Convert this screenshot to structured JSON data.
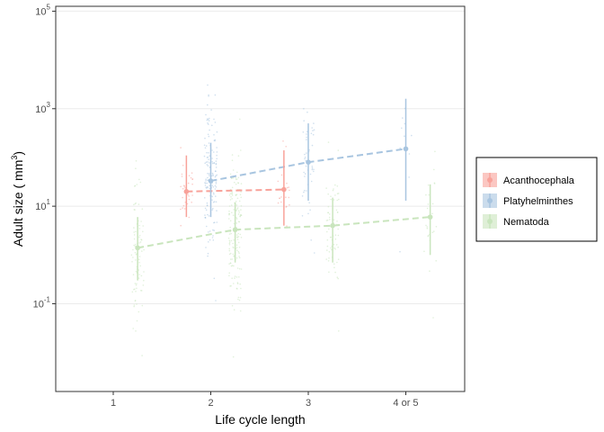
{
  "chart_data": {
    "type": "scatter",
    "xlabel": "Life cycle length",
    "ylabel": {
      "main": "Adult size ( mm",
      "sup": "3",
      "close": ")"
    },
    "x_categories": [
      "1",
      "2",
      "3",
      "4 or 5"
    ],
    "y_scale": "log10",
    "y_range_log10": [
      -2.8,
      5.1
    ],
    "y_ticks": [
      {
        "exp": -1,
        "base": "10",
        "sup": "-1"
      },
      {
        "exp": 1,
        "base": "10",
        "sup": "1"
      },
      {
        "exp": 3,
        "base": "10",
        "sup": "3"
      },
      {
        "exp": 5,
        "base": "10",
        "sup": "5"
      }
    ],
    "grid": "horizontal major",
    "legend": {
      "position": "right"
    },
    "series": [
      {
        "name": "Acanthocephala",
        "color": "#f8a29a",
        "offset": -0.25,
        "points": [
          {
            "x": "2",
            "mean": 20,
            "lo": 6,
            "hi": 110
          },
          {
            "x": "3",
            "mean": 22,
            "lo": 4,
            "hi": 140
          }
        ],
        "raw": [
          {
            "x": "2",
            "center_log": 1.3,
            "sd_log": 0.35,
            "n": 30
          },
          {
            "x": "3",
            "center_log": 1.35,
            "sd_log": 0.4,
            "n": 20
          }
        ]
      },
      {
        "name": "Platyhelminthes",
        "color": "#a8c5e0",
        "offset": 0,
        "points": [
          {
            "x": "2",
            "mean": 33,
            "lo": 6,
            "hi": 200
          },
          {
            "x": "3",
            "mean": 80,
            "lo": 13,
            "hi": 500
          },
          {
            "x": "4 or 5",
            "mean": 150,
            "lo": 13,
            "hi": 1600
          }
        ],
        "raw": [
          {
            "x": "2",
            "center_log": 1.6,
            "sd_log": 0.75,
            "n": 150
          },
          {
            "x": "3",
            "center_log": 1.9,
            "sd_log": 0.6,
            "n": 45
          },
          {
            "x": "4 or 5",
            "center_log": 2.2,
            "sd_log": 0.7,
            "n": 10
          }
        ]
      },
      {
        "name": "Nematoda",
        "color": "#c9e5bd",
        "offset": 0.25,
        "points": [
          {
            "x": "1",
            "mean": 1.4,
            "lo": 0.3,
            "hi": 6
          },
          {
            "x": "2",
            "mean": 3.3,
            "lo": 0.7,
            "hi": 12
          },
          {
            "x": "3",
            "mean": 4,
            "lo": 0.7,
            "hi": 15
          },
          {
            "x": "4 or 5",
            "mean": 6,
            "lo": 1,
            "hi": 28
          }
        ],
        "raw": [
          {
            "x": "1",
            "center_log": 0.1,
            "sd_log": 0.7,
            "n": 90
          },
          {
            "x": "2",
            "center_log": 0.45,
            "sd_log": 0.75,
            "n": 160
          },
          {
            "x": "3",
            "center_log": 0.6,
            "sd_log": 0.7,
            "n": 70
          },
          {
            "x": "4 or 5",
            "center_log": 0.8,
            "sd_log": 0.6,
            "n": 25
          }
        ]
      }
    ]
  }
}
